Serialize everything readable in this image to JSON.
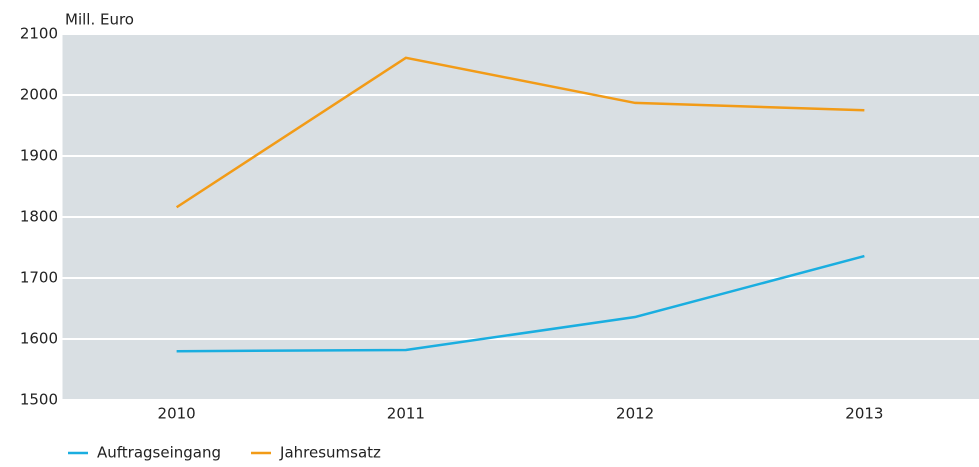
{
  "chart_data": {
    "type": "line",
    "y_label": "Mill. Euro",
    "categories": [
      "2010",
      "2011",
      "2012",
      "2013"
    ],
    "series": [
      {
        "name": "Auftragseingang",
        "color": "#1aaee0",
        "values": [
          1580,
          1582,
          1636,
          1736
        ]
      },
      {
        "name": "Jahresumsatz",
        "color": "#f29b17",
        "values": [
          1816,
          2061,
          1987,
          1975
        ]
      }
    ],
    "ylim": [
      1500,
      2100
    ],
    "yticks": [
      1500,
      1600,
      1700,
      1800,
      1900,
      2000,
      2100
    ],
    "grid": true,
    "legend": "bottom-left"
  }
}
